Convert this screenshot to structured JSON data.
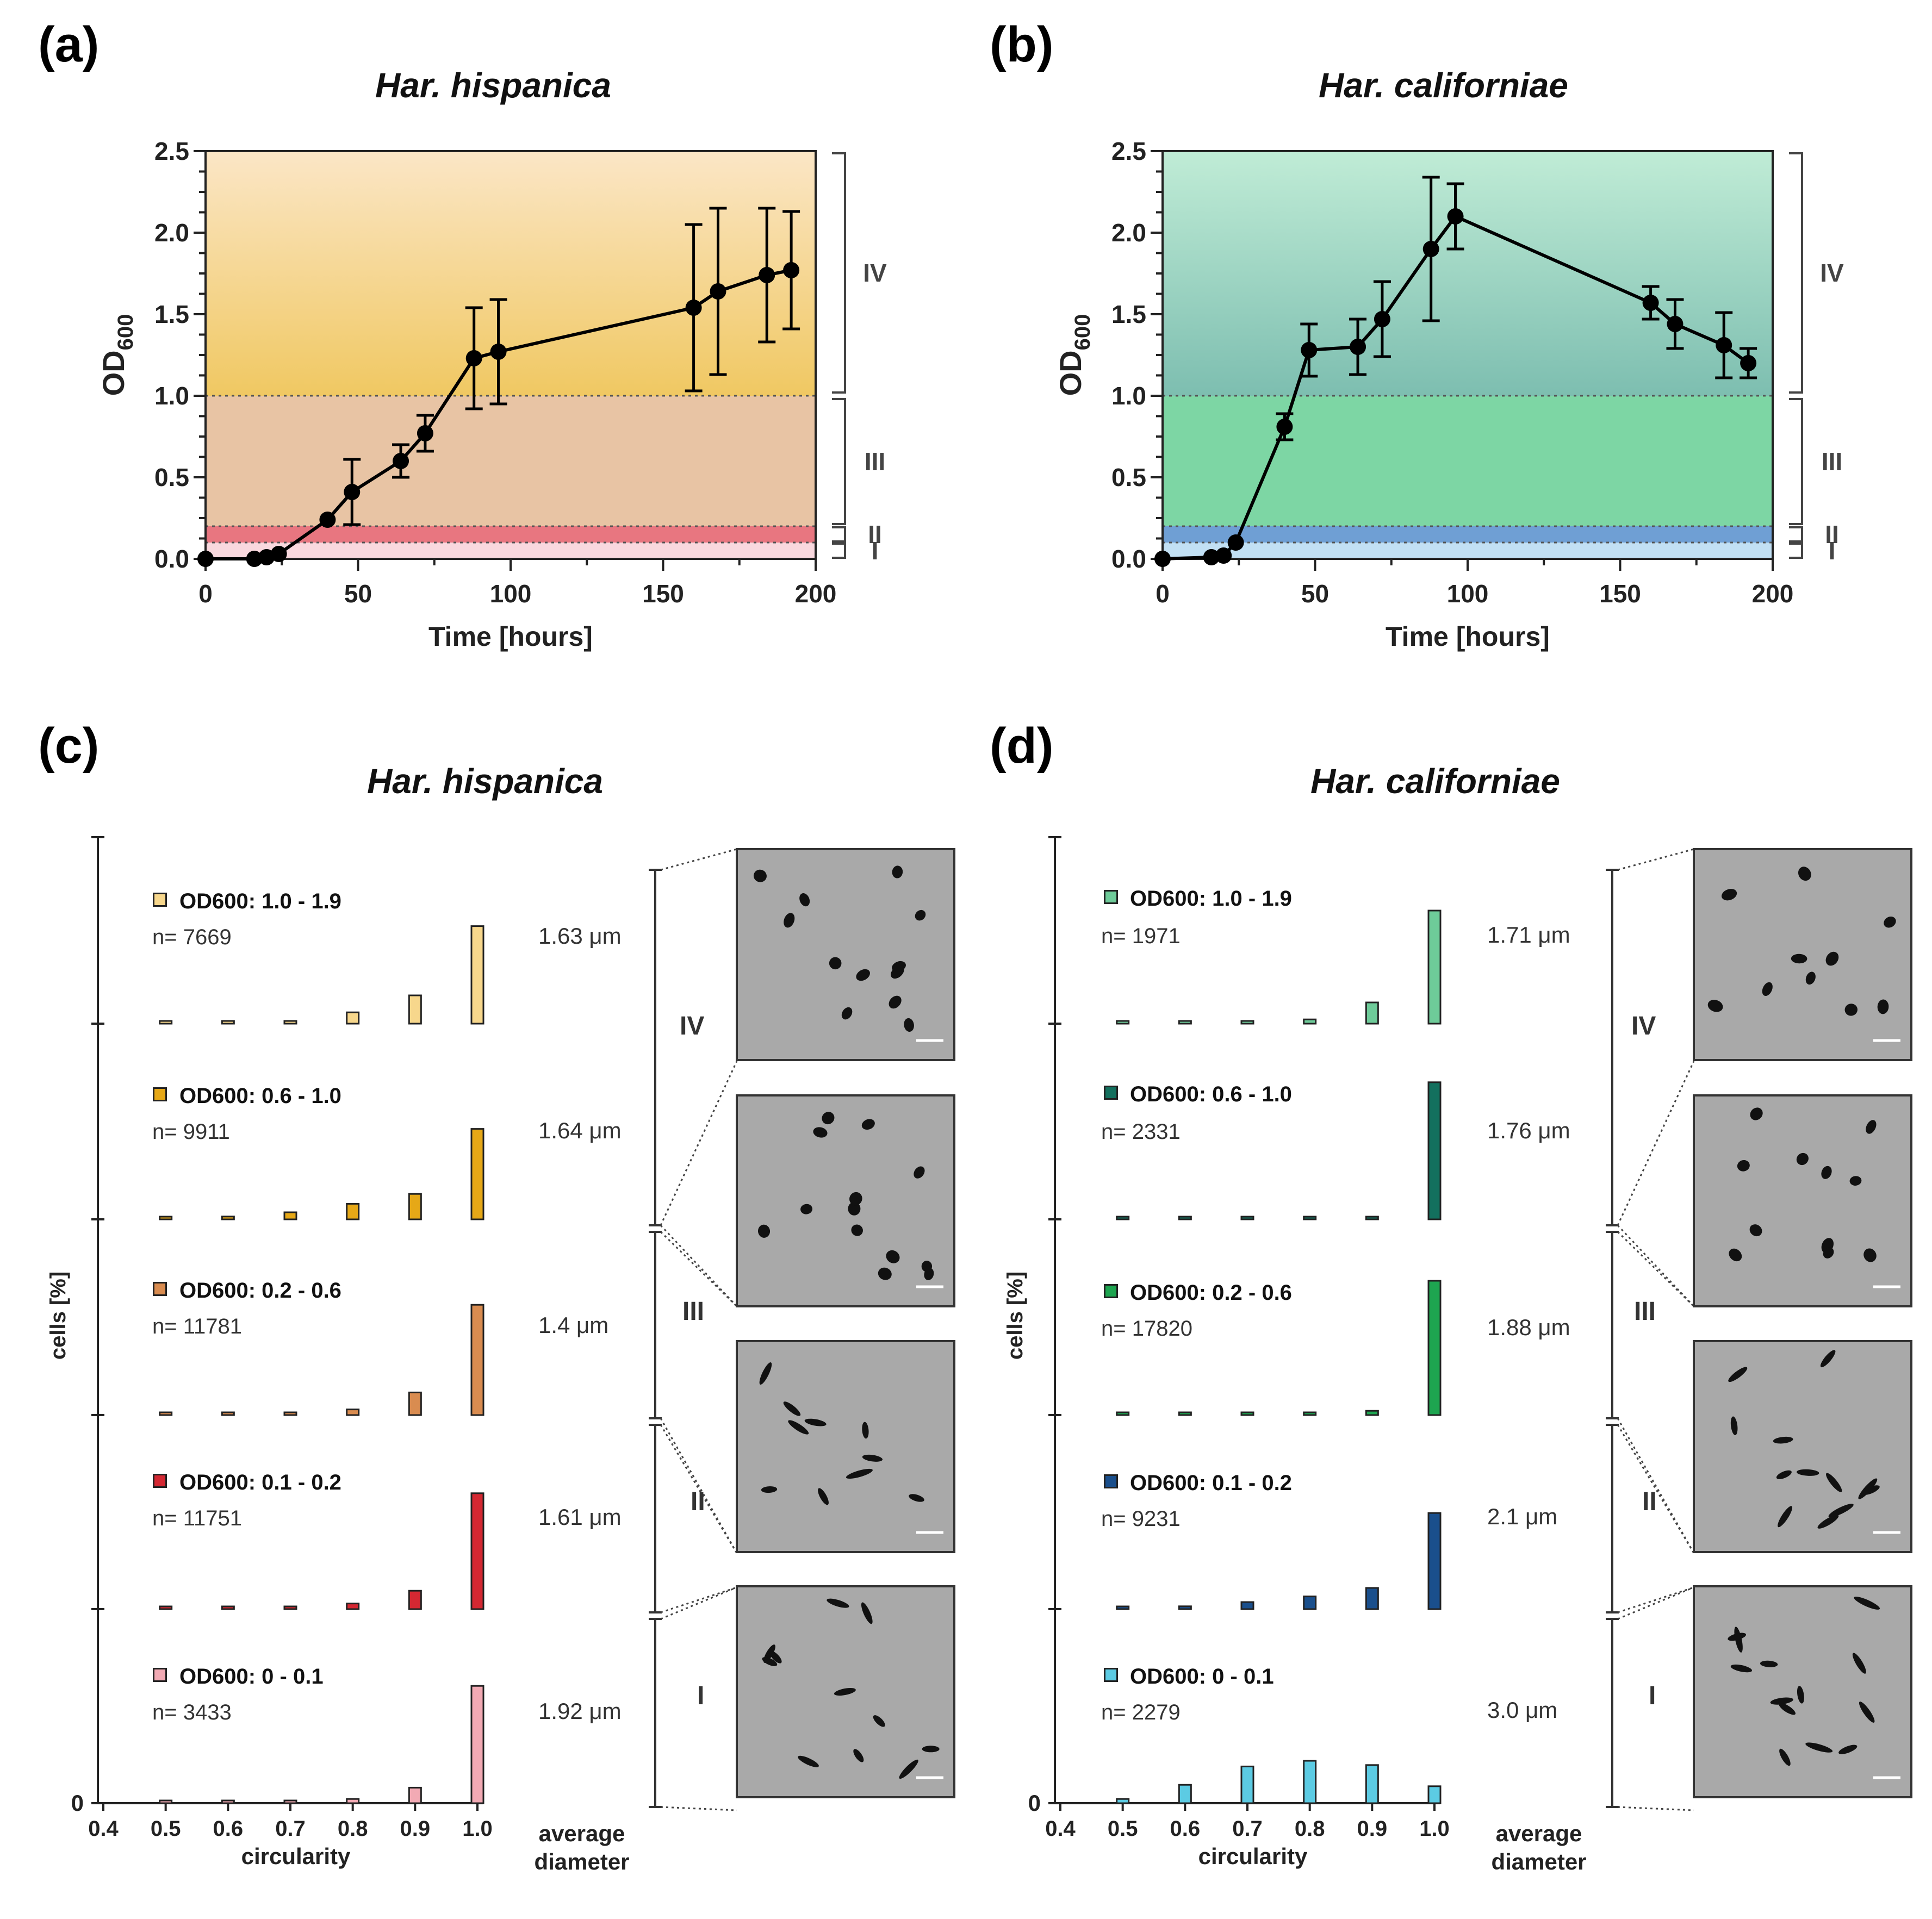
{
  "panel_labels": [
    "(a)",
    "(b)",
    "(c)",
    "(d)"
  ],
  "growth_panels": [
    {
      "label": "(a)",
      "title": "Har. hispanica",
      "colors": {
        "top": "#fbe6c6",
        "phase4": "#f0c862",
        "phase3": "#e8c4a4",
        "phase2": "#e87680",
        "phase1": "#f9d8de"
      },
      "chart_data": {
        "type": "line",
        "title": "Har. hispanica",
        "xlabel": "Time [hours]",
        "ylabel": "OD600",
        "xlim": [
          0,
          200
        ],
        "ylim": [
          0,
          2.5
        ],
        "xticks": [
          "0",
          "50",
          "100",
          "150",
          "200"
        ],
        "yticks": [
          "0.0",
          "0.5",
          "1.0",
          "1.5",
          "2.0",
          "2.5"
        ],
        "x": [
          0,
          16,
          20,
          24,
          40,
          48,
          64,
          72,
          88,
          96,
          160,
          168,
          184,
          192
        ],
        "y": [
          0.0,
          0.0,
          0.01,
          0.03,
          0.24,
          0.41,
          0.6,
          0.77,
          1.23,
          1.27,
          1.54,
          1.64,
          1.74,
          1.77
        ],
        "err": [
          0.0,
          0.0,
          0.0,
          0.0,
          0.0,
          0.2,
          0.1,
          0.11,
          0.31,
          0.32,
          0.51,
          0.51,
          0.41,
          0.36
        ],
        "phase_bounds": [
          0.1,
          0.2,
          1.0
        ],
        "phases": [
          "I",
          "II",
          "III",
          "IV"
        ]
      }
    },
    {
      "label": "(b)",
      "title": "Har. californiae",
      "colors": {
        "top": "#c0ecd6",
        "phase4": "#7dbeb0",
        "phase3": "#7dd6a4",
        "phase2": "#6f9fd4",
        "phase1": "#c2e0f4"
      },
      "chart_data": {
        "type": "line",
        "title": "Har. californiae",
        "xlabel": "Time [hours]",
        "ylabel": "OD600",
        "xlim": [
          0,
          200
        ],
        "ylim": [
          0,
          2.5
        ],
        "xticks": [
          "0",
          "50",
          "100",
          "150",
          "200"
        ],
        "yticks": [
          "0.0",
          "0.5",
          "1.0",
          "1.5",
          "2.0",
          "2.5"
        ],
        "x": [
          0,
          16,
          20,
          24,
          40,
          48,
          64,
          72,
          88,
          96,
          160,
          168,
          184,
          192
        ],
        "y": [
          0.0,
          0.01,
          0.02,
          0.1,
          0.81,
          1.28,
          1.3,
          1.47,
          1.9,
          2.1,
          1.57,
          1.44,
          1.31,
          1.2
        ],
        "err": [
          0.0,
          0.0,
          0.0,
          0.0,
          0.08,
          0.16,
          0.17,
          0.23,
          0.44,
          0.2,
          0.1,
          0.15,
          0.2,
          0.09
        ],
        "phase_bounds": [
          0.1,
          0.2,
          1.0
        ],
        "phases": [
          "I",
          "II",
          "III",
          "IV"
        ]
      }
    }
  ],
  "circ_panels": [
    {
      "label": "(c)",
      "title": "Har. hispanica",
      "y_axis_label": "cells [%]",
      "zero_label": "0",
      "x_axis_label": "circularity",
      "x_ticks": [
        "0.4",
        "0.5",
        "0.6",
        "0.7",
        "0.8",
        "0.9",
        "1.0"
      ],
      "avg_label": [
        "average",
        "diameter"
      ],
      "chart_data": {
        "type": "bar",
        "xlabel": "circularity",
        "ylabel": "cells [%]",
        "categories": [
          0.5,
          0.6,
          0.7,
          0.8,
          0.9,
          1.0
        ],
        "series": [
          {
            "name": "OD600: 1.0 - 1.9",
            "n": "n= 7669",
            "diameter": "1.63 μm",
            "phase": "IV",
            "color": "#f7d78c",
            "values": [
              0.5,
              0.5,
              1,
              8,
              20,
              69
            ]
          },
          {
            "name": "OD600: 0.6 - 1.0",
            "n": "n= 9911",
            "diameter": "1.64 μm",
            "phase": "",
            "color": "#e6a817",
            "values": [
              0.5,
              2,
              5,
              11,
              18,
              64
            ]
          },
          {
            "name": "OD600: 0.2 - 0.6",
            "n": "n= 11781",
            "diameter": "1.4 μm",
            "phase": "III",
            "color": "#d98c50",
            "values": [
              0.5,
              0.5,
              1,
              4,
              16,
              78
            ]
          },
          {
            "name": "OD600: 0.1 - 0.2",
            "n": "n= 11751",
            "diameter": "1.61 μm",
            "phase": "II",
            "color": "#d42832",
            "values": [
              0.5,
              0.5,
              1,
              4,
              13,
              82
            ]
          },
          {
            "name": "OD600: 0 - 0.1",
            "n": "n= 3433",
            "diameter": "1.92 μm",
            "phase": "I",
            "color": "#f2aab4",
            "values": [
              0.5,
              1,
              1.5,
              3,
              11,
              83
            ]
          }
        ]
      },
      "phase_labels": [
        "IV",
        "III",
        "II",
        "I"
      ]
    },
    {
      "label": "(d)",
      "title": "Har. californiae",
      "y_axis_label": "cells [%]",
      "zero_label": "0",
      "x_axis_label": "circularity",
      "x_ticks": [
        "0.4",
        "0.5",
        "0.6",
        "0.7",
        "0.8",
        "0.9",
        "1.0"
      ],
      "avg_label": [
        "average",
        "diameter"
      ],
      "chart_data": {
        "type": "bar",
        "xlabel": "circularity",
        "ylabel": "cells [%]",
        "categories": [
          0.5,
          0.6,
          0.7,
          0.8,
          0.9,
          1.0
        ],
        "series": [
          {
            "name": "OD600: 1.0 - 1.9",
            "n": "n= 1971",
            "diameter": "1.71 μm",
            "phase": "IV",
            "color": "#6ecb99",
            "values": [
              0.5,
              0.5,
              1,
              3,
              15,
              80
            ]
          },
          {
            "name": "OD600: 0.6 - 1.0",
            "n": "n= 2331",
            "diameter": "1.76 μm",
            "phase": "",
            "color": "#13705e",
            "values": [
              0.5,
              0.5,
              0.5,
              0.5,
              1,
              97
            ]
          },
          {
            "name": "OD600: 0.2 - 0.6",
            "n": "n= 17820",
            "diameter": "1.88 μm",
            "phase": "III",
            "color": "#1ea550",
            "values": [
              0.5,
              0.5,
              0.5,
              0.5,
              3,
              95
            ]
          },
          {
            "name": "OD600: 0.1 - 0.2",
            "n": "n= 9231",
            "diameter": "2.1 μm",
            "phase": "II",
            "color": "#1a4f8c",
            "values": [
              0.5,
              2,
              5,
              9,
              15,
              68
            ]
          },
          {
            "name": "OD600: 0 - 0.1",
            "n": "n= 2279",
            "diameter": "3.0 μm",
            "phase": "I",
            "color": "#5ccbe3",
            "values": [
              3,
              13,
              26,
              30,
              27,
              12
            ]
          }
        ]
      },
      "phase_labels": [
        "IV",
        "III",
        "II",
        "I"
      ]
    }
  ]
}
